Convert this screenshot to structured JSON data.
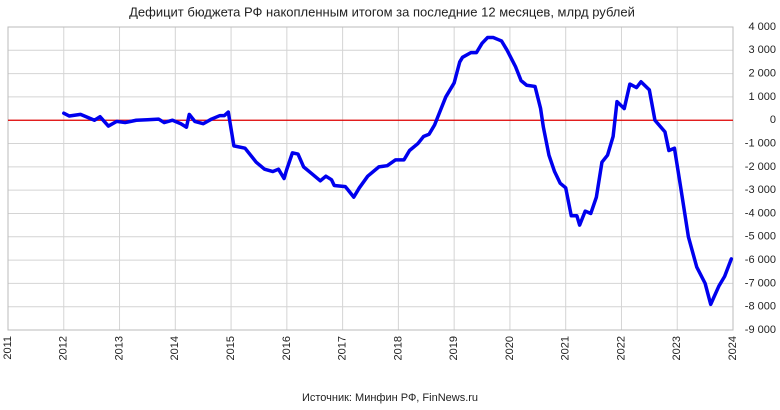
{
  "chart_data": {
    "type": "line",
    "title": "Дефицит бюджета РФ накопленным итогом за последние 12 месяцев, млрд рублей",
    "source": "Источник: Минфин РФ, FinNews.ru",
    "color": "#0000ee",
    "grid": true,
    "y_axis_side": "right",
    "reference_line": {
      "y": 0,
      "color": "#e00000"
    },
    "x": [
      2012.0,
      2012.1,
      2012.3,
      2012.45,
      2012.55,
      2012.65,
      2012.8,
      2012.95,
      2013.1,
      2013.3,
      2013.5,
      2013.7,
      2013.8,
      2013.95,
      2014.1,
      2014.2,
      2014.25,
      2014.35,
      2014.5,
      2014.65,
      2014.8,
      2014.88,
      2014.95,
      2015.05,
      2015.25,
      2015.45,
      2015.6,
      2015.75,
      2015.85,
      2015.95,
      2016.0,
      2016.1,
      2016.2,
      2016.3,
      2016.45,
      2016.6,
      2016.7,
      2016.8,
      2016.85,
      2017.05,
      2017.1,
      2017.2,
      2017.3,
      2017.45,
      2017.65,
      2017.8,
      2017.95,
      2018.1,
      2018.2,
      2018.35,
      2018.45,
      2018.55,
      2018.65,
      2018.75,
      2018.85,
      2019.0,
      2019.1,
      2019.15,
      2019.3,
      2019.4,
      2019.5,
      2019.6,
      2019.7,
      2019.8,
      2019.85,
      2019.95,
      2020.1,
      2020.2,
      2020.3,
      2020.45,
      2020.55,
      2020.6,
      2020.7,
      2020.8,
      2020.9,
      2021.0,
      2021.05,
      2021.1,
      2021.2,
      2021.25,
      2021.35,
      2021.45,
      2021.55,
      2021.65,
      2021.75,
      2021.85,
      2021.92,
      2022.05,
      2022.15,
      2022.27,
      2022.35,
      2022.5,
      2022.6,
      2022.78,
      2022.85,
      2022.95,
      2023.07,
      2023.2,
      2023.35,
      2023.5,
      2023.6,
      2023.75,
      2023.85,
      2023.97
    ],
    "values": [
      300,
      180,
      250,
      100,
      0,
      150,
      -250,
      -50,
      -100,
      0,
      20,
      50,
      -100,
      0,
      -150,
      -300,
      250,
      -50,
      -150,
      50,
      200,
      200,
      350,
      -1100,
      -1200,
      -1800,
      -2100,
      -2200,
      -2100,
      -2500,
      -2100,
      -1400,
      -1450,
      -2000,
      -2300,
      -2600,
      -2400,
      -2550,
      -2800,
      -2850,
      -3000,
      -3300,
      -2900,
      -2400,
      -2000,
      -1950,
      -1700,
      -1700,
      -1300,
      -1000,
      -700,
      -600,
      -200,
      400,
      1000,
      1600,
      2500,
      2700,
      2900,
      2900,
      3300,
      3550,
      3550,
      3450,
      3400,
      3000,
      2300,
      1700,
      1500,
      1450,
      500,
      -300,
      -1500,
      -2200,
      -2700,
      -2900,
      -3500,
      -4100,
      -4100,
      -4500,
      -3900,
      -4000,
      -3300,
      -1800,
      -1500,
      -700,
      800,
      500,
      1550,
      1400,
      1650,
      1300,
      0,
      -500,
      -1300,
      -1200,
      -3000,
      -5000,
      -6300,
      -7000,
      -7900,
      -7100,
      -6700,
      -5950
    ],
    "xlim": [
      2011,
      2024
    ],
    "xticks": [
      2011,
      2012,
      2013,
      2014,
      2015,
      2016,
      2017,
      2018,
      2019,
      2020,
      2021,
      2022,
      2023,
      2024
    ],
    "ylim": [
      -9000,
      4000
    ],
    "yticks": [
      {
        "value": 4000,
        "label": "4 000"
      },
      {
        "value": 3000,
        "label": "3 000"
      },
      {
        "value": 2000,
        "label": "2 000"
      },
      {
        "value": 1000,
        "label": "1 000"
      },
      0,
      {
        "value": -1000,
        "label": "-1 000"
      },
      {
        "value": -2000,
        "label": "-2 000"
      },
      {
        "value": -3000,
        "label": "-3 000"
      },
      {
        "value": -4000,
        "label": "-4 000"
      },
      {
        "value": -5000,
        "label": "-5 000"
      },
      {
        "value": -6000,
        "label": "-6 000"
      },
      {
        "value": -7000,
        "label": "-7 000"
      },
      {
        "value": -8000,
        "label": "-8 000"
      },
      {
        "value": -9000,
        "label": "-9 000"
      }
    ]
  }
}
